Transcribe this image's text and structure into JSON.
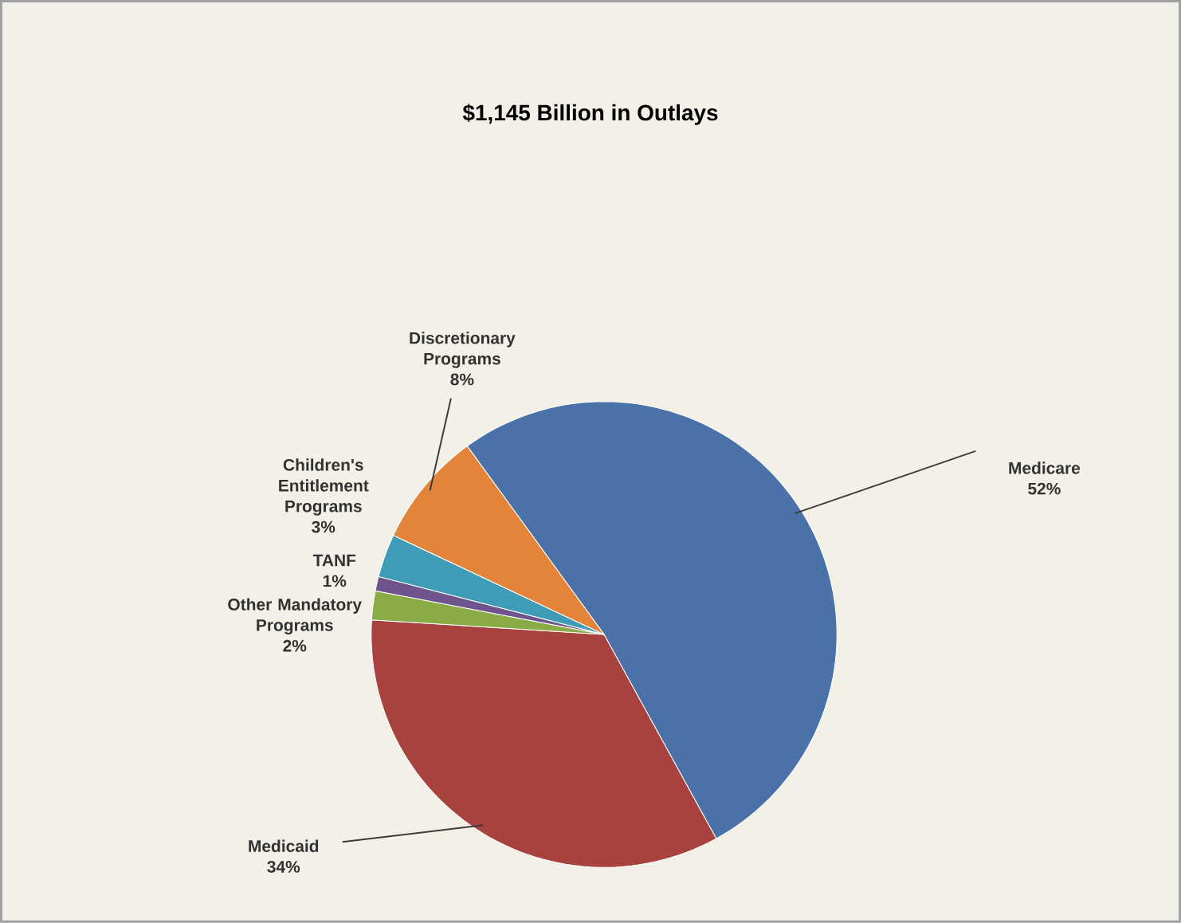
{
  "chart_data": {
    "type": "pie",
    "title": "$1,145 Billion in Outlays",
    "categories": [
      "Medicare",
      "Medicaid",
      "Other Mandatory Programs",
      "TANF",
      "Children's Entitlement Programs",
      "Discretionary Programs"
    ],
    "values": [
      52,
      34,
      2,
      1,
      3,
      8
    ],
    "value_labels": [
      "52%",
      "34%",
      "2%",
      "1%",
      "3%",
      "8%"
    ],
    "colors": [
      "#4a72a8",
      "#a8423f",
      "#8aac46",
      "#6e548d",
      "#3e9cb7",
      "#e4843a"
    ]
  }
}
